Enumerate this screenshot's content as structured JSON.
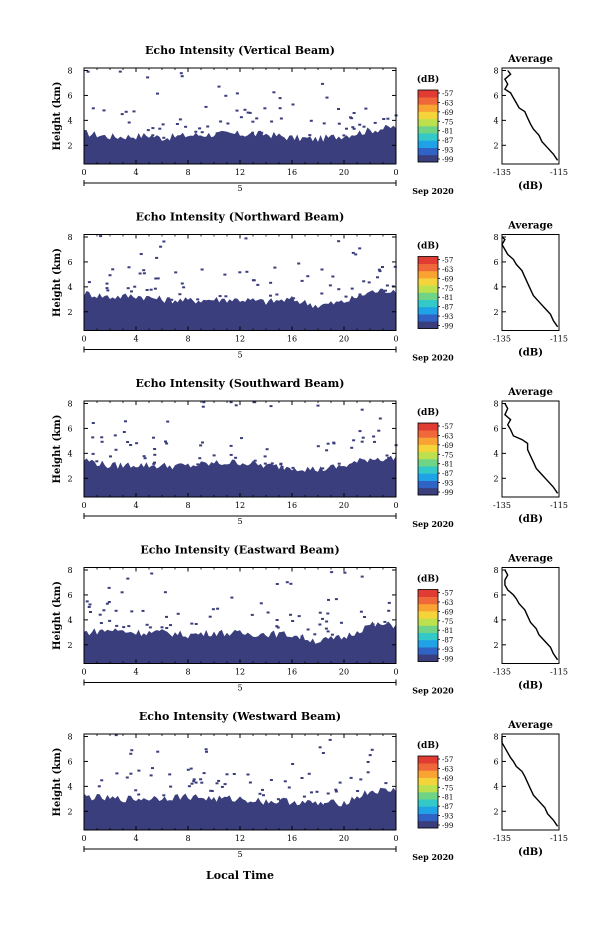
{
  "figure": {
    "xlabel": "Local Time",
    "date_label": "Sep 2020",
    "date_day": "5",
    "colorbar_unit": "(dB)",
    "colorbar_ticks": [
      "-57",
      "-63",
      "-69",
      "-75",
      "-81",
      "-87",
      "-93",
      "-99"
    ],
    "colors": {
      "echo_fill": "#3a3e7c",
      "colormap": [
        "#3a3e7c",
        "#2f63c6",
        "#1fa2e6",
        "#33c9c9",
        "#6fd486",
        "#bde14e",
        "#f4d43a",
        "#f8a332",
        "#f0673a",
        "#e03c34"
      ]
    }
  },
  "chart_data": [
    {
      "type": "heatmap",
      "title": "Echo Intensity (Vertical Beam)",
      "ylabel": "Height (km)",
      "xlim": [
        0,
        24
      ],
      "ylim": [
        0.5,
        8.2
      ],
      "x_ticks": [
        "0",
        "4",
        "8",
        "12",
        "16",
        "20",
        "0"
      ],
      "y_ticks": [
        "2",
        "4",
        "6",
        "8"
      ],
      "echo_top_km": [
        [
          0,
          3.0
        ],
        [
          2,
          2.7
        ],
        [
          3,
          2.7
        ],
        [
          5,
          2.8
        ],
        [
          6,
          2.6
        ],
        [
          8,
          2.8
        ],
        [
          10,
          2.9
        ],
        [
          12,
          2.9
        ],
        [
          14,
          2.9
        ],
        [
          16,
          2.6
        ],
        [
          18,
          2.5
        ],
        [
          20,
          2.8
        ],
        [
          22,
          3.2
        ],
        [
          24,
          3.5
        ]
      ],
      "colorbar_ticks": [
        "-57",
        "-63",
        "-69",
        "-75",
        "-81",
        "-87",
        "-93",
        "-99"
      ],
      "average": {
        "title": "Average",
        "xlabel": "(dB)",
        "xlim": [
          -135,
          -115
        ],
        "ylim": [
          0.5,
          8.2
        ],
        "x_ticks": [
          "-135",
          "-115"
        ],
        "y_ticks": [
          "2",
          "4",
          "6",
          "8"
        ],
        "profile": [
          [
            -115.5,
            0.8
          ],
          [
            -117,
            1.3
          ],
          [
            -119,
            1.8
          ],
          [
            -121,
            2.3
          ],
          [
            -122,
            2.8
          ],
          [
            -124,
            3.3
          ],
          [
            -125,
            3.7
          ],
          [
            -126,
            4.2
          ],
          [
            -127,
            4.7
          ],
          [
            -129,
            5.0
          ],
          [
            -130,
            5.4
          ],
          [
            -131,
            5.8
          ],
          [
            -132,
            6.2
          ],
          [
            -134,
            6.5
          ],
          [
            -133,
            6.9
          ],
          [
            -134,
            7.3
          ],
          [
            -132,
            7.7
          ],
          [
            -133,
            8.0
          ]
        ]
      }
    },
    {
      "type": "heatmap",
      "title": "Echo Intensity (Northward Beam)",
      "ylabel": "Height (km)",
      "xlim": [
        0,
        24
      ],
      "ylim": [
        0.5,
        8.2
      ],
      "x_ticks": [
        "0",
        "4",
        "8",
        "12",
        "16",
        "20",
        "0"
      ],
      "y_ticks": [
        "2",
        "4",
        "6",
        "8"
      ],
      "echo_top_km": [
        [
          0,
          3.5
        ],
        [
          2,
          3.2
        ],
        [
          4,
          3.3
        ],
        [
          6,
          3.0
        ],
        [
          8,
          2.9
        ],
        [
          10,
          3.0
        ],
        [
          12,
          3.0
        ],
        [
          14,
          2.8
        ],
        [
          16,
          3.0
        ],
        [
          18,
          2.5
        ],
        [
          20,
          2.8
        ],
        [
          22,
          3.6
        ],
        [
          24,
          3.8
        ]
      ],
      "colorbar_ticks": [
        "-57",
        "-63",
        "-69",
        "-75",
        "-81",
        "-87",
        "-93",
        "-99"
      ],
      "average": {
        "title": "Average",
        "xlabel": "(dB)",
        "xlim": [
          -135,
          -115
        ],
        "ylim": [
          0.5,
          8.2
        ],
        "x_ticks": [
          "-135",
          "-115"
        ],
        "y_ticks": [
          "2",
          "4",
          "6",
          "8"
        ],
        "profile": [
          [
            -115.5,
            0.8
          ],
          [
            -117,
            1.3
          ],
          [
            -118,
            1.8
          ],
          [
            -120,
            2.3
          ],
          [
            -122,
            2.8
          ],
          [
            -124,
            3.3
          ],
          [
            -125,
            3.8
          ],
          [
            -126,
            4.3
          ],
          [
            -127,
            4.8
          ],
          [
            -128,
            5.3
          ],
          [
            -130,
            5.8
          ],
          [
            -131,
            6.2
          ],
          [
            -133,
            6.6
          ],
          [
            -134,
            7.0
          ],
          [
            -135,
            7.4
          ],
          [
            -134,
            7.8
          ],
          [
            -135,
            8.0
          ]
        ]
      }
    },
    {
      "type": "heatmap",
      "title": "Echo Intensity (Southward Beam)",
      "ylabel": "Height (km)",
      "xlim": [
        0,
        24
      ],
      "ylim": [
        0.5,
        8.2
      ],
      "x_ticks": [
        "0",
        "4",
        "8",
        "12",
        "16",
        "20",
        "0"
      ],
      "y_ticks": [
        "2",
        "4",
        "6",
        "8"
      ],
      "echo_top_km": [
        [
          0,
          3.5
        ],
        [
          2,
          3.0
        ],
        [
          4,
          3.1
        ],
        [
          6,
          3.0
        ],
        [
          8,
          3.0
        ],
        [
          10,
          3.2
        ],
        [
          12,
          3.3
        ],
        [
          14,
          3.0
        ],
        [
          16,
          2.9
        ],
        [
          18,
          2.7
        ],
        [
          20,
          3.0
        ],
        [
          22,
          3.6
        ],
        [
          24,
          3.6
        ]
      ],
      "colorbar_ticks": [
        "-57",
        "-63",
        "-69",
        "-75",
        "-81",
        "-87",
        "-93",
        "-99"
      ],
      "average": {
        "title": "Average",
        "xlabel": "(dB)",
        "xlim": [
          -135,
          -115
        ],
        "ylim": [
          0.5,
          8.2
        ],
        "x_ticks": [
          "-135",
          "-115"
        ],
        "y_ticks": [
          "2",
          "4",
          "6",
          "8"
        ],
        "profile": [
          [
            -115.5,
            0.8
          ],
          [
            -117,
            1.3
          ],
          [
            -119,
            1.8
          ],
          [
            -121,
            2.3
          ],
          [
            -123,
            2.8
          ],
          [
            -124,
            3.3
          ],
          [
            -125,
            3.8
          ],
          [
            -126,
            4.3
          ],
          [
            -126,
            4.8
          ],
          [
            -128,
            5.1
          ],
          [
            -131,
            5.4
          ],
          [
            -132,
            5.9
          ],
          [
            -133,
            6.3
          ],
          [
            -132,
            6.7
          ],
          [
            -134,
            7.1
          ],
          [
            -133,
            7.6
          ],
          [
            -134,
            8.0
          ]
        ]
      }
    },
    {
      "type": "heatmap",
      "title": "Echo Intensity (Eastward Beam)",
      "ylabel": "Height (km)",
      "xlim": [
        0,
        24
      ],
      "ylim": [
        0.5,
        8.2
      ],
      "x_ticks": [
        "0",
        "4",
        "8",
        "12",
        "16",
        "20",
        "0"
      ],
      "y_ticks": [
        "2",
        "4",
        "6",
        "8"
      ],
      "echo_top_km": [
        [
          0,
          3.0
        ],
        [
          2,
          3.2
        ],
        [
          4,
          3.0
        ],
        [
          6,
          3.0
        ],
        [
          8,
          2.8
        ],
        [
          10,
          3.0
        ],
        [
          12,
          2.9
        ],
        [
          14,
          2.9
        ],
        [
          16,
          2.8
        ],
        [
          18,
          2.3
        ],
        [
          20,
          2.6
        ],
        [
          22,
          3.6
        ],
        [
          24,
          3.6
        ]
      ],
      "colorbar_ticks": [
        "-57",
        "-63",
        "-69",
        "-75",
        "-81",
        "-87",
        "-93",
        "-99"
      ],
      "average": {
        "title": "Average",
        "xlabel": "(dB)",
        "xlim": [
          -135,
          -115
        ],
        "ylim": [
          0.5,
          8.2
        ],
        "x_ticks": [
          "-135",
          "-115"
        ],
        "y_ticks": [
          "2",
          "4",
          "6",
          "8"
        ],
        "profile": [
          [
            -115.5,
            0.8
          ],
          [
            -117,
            1.3
          ],
          [
            -118,
            1.8
          ],
          [
            -120,
            2.3
          ],
          [
            -122,
            2.8
          ],
          [
            -123,
            3.3
          ],
          [
            -125,
            3.8
          ],
          [
            -126,
            4.3
          ],
          [
            -127,
            4.8
          ],
          [
            -129,
            5.3
          ],
          [
            -130,
            5.7
          ],
          [
            -131,
            6.0
          ],
          [
            -133,
            6.4
          ],
          [
            -134,
            6.8
          ],
          [
            -134,
            7.2
          ],
          [
            -133,
            7.6
          ],
          [
            -134,
            8.0
          ]
        ]
      }
    },
    {
      "type": "heatmap",
      "title": "Echo Intensity (Westward Beam)",
      "ylabel": "Height (km)",
      "xlim": [
        0,
        24
      ],
      "ylim": [
        0.5,
        8.2
      ],
      "x_ticks": [
        "0",
        "4",
        "8",
        "12",
        "16",
        "20",
        "0"
      ],
      "y_ticks": [
        "2",
        "4",
        "6",
        "8"
      ],
      "echo_top_km": [
        [
          0,
          3.2
        ],
        [
          2,
          3.0
        ],
        [
          4,
          3.0
        ],
        [
          6,
          3.1
        ],
        [
          8,
          3.2
        ],
        [
          10,
          3.0
        ],
        [
          12,
          3.0
        ],
        [
          14,
          2.8
        ],
        [
          16,
          2.8
        ],
        [
          18,
          2.6
        ],
        [
          20,
          2.7
        ],
        [
          22,
          3.6
        ],
        [
          24,
          3.7
        ]
      ],
      "colorbar_ticks": [
        "-57",
        "-63",
        "-69",
        "-75",
        "-81",
        "-87",
        "-93",
        "-99"
      ],
      "average": {
        "title": "Average",
        "xlabel": "(dB)",
        "xlim": [
          -135,
          -115
        ],
        "ylim": [
          0.5,
          8.2
        ],
        "x_ticks": [
          "-135",
          "-115"
        ],
        "y_ticks": [
          "2",
          "4",
          "6",
          "8"
        ],
        "profile": [
          [
            -115.5,
            0.8
          ],
          [
            -117,
            1.3
          ],
          [
            -119,
            1.8
          ],
          [
            -120,
            2.3
          ],
          [
            -122,
            2.8
          ],
          [
            -124,
            3.3
          ],
          [
            -125,
            3.8
          ],
          [
            -126,
            4.3
          ],
          [
            -127,
            4.8
          ],
          [
            -128,
            5.2
          ],
          [
            -130,
            5.6
          ],
          [
            -131,
            6.0
          ],
          [
            -132,
            6.3
          ],
          [
            -133,
            6.7
          ],
          [
            -134,
            7.1
          ],
          [
            -135,
            7.5
          ],
          [
            -135,
            8.0
          ]
        ]
      }
    }
  ]
}
